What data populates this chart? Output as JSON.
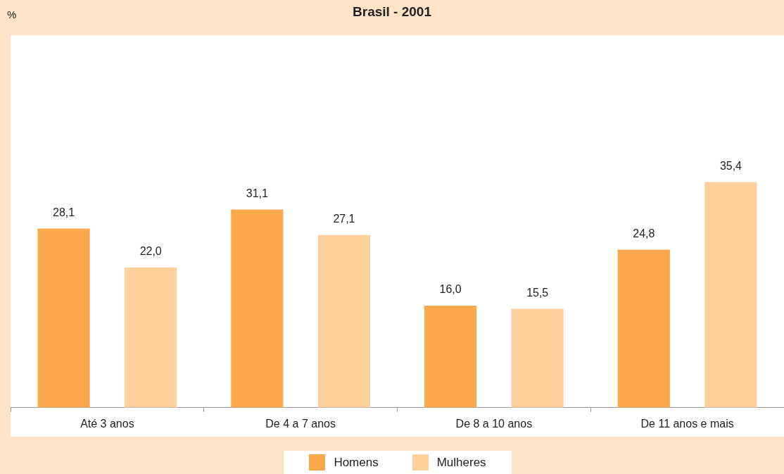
{
  "chart_data": {
    "type": "bar",
    "title": "Brasil - 2001",
    "annotations": [
      "%"
    ],
    "categories": [
      "Até 3 anos",
      "De 4 a 7 anos",
      "De 8 a 10 anos",
      "De 11 anos e mais"
    ],
    "series": [
      {
        "name": "Homens",
        "color": "#f9a84c",
        "values": [
          28.1,
          31.1,
          16.0,
          24.8
        ],
        "value_labels": [
          "28,1",
          "31,1",
          "16,0",
          "24,8"
        ]
      },
      {
        "name": "Mulheres",
        "color": "#fdd09c",
        "values": [
          22.0,
          27.1,
          15.5,
          35.4
        ],
        "value_labels": [
          "22,0",
          "27,1",
          "15,5",
          "35,4"
        ]
      }
    ],
    "legend": "bottom"
  }
}
